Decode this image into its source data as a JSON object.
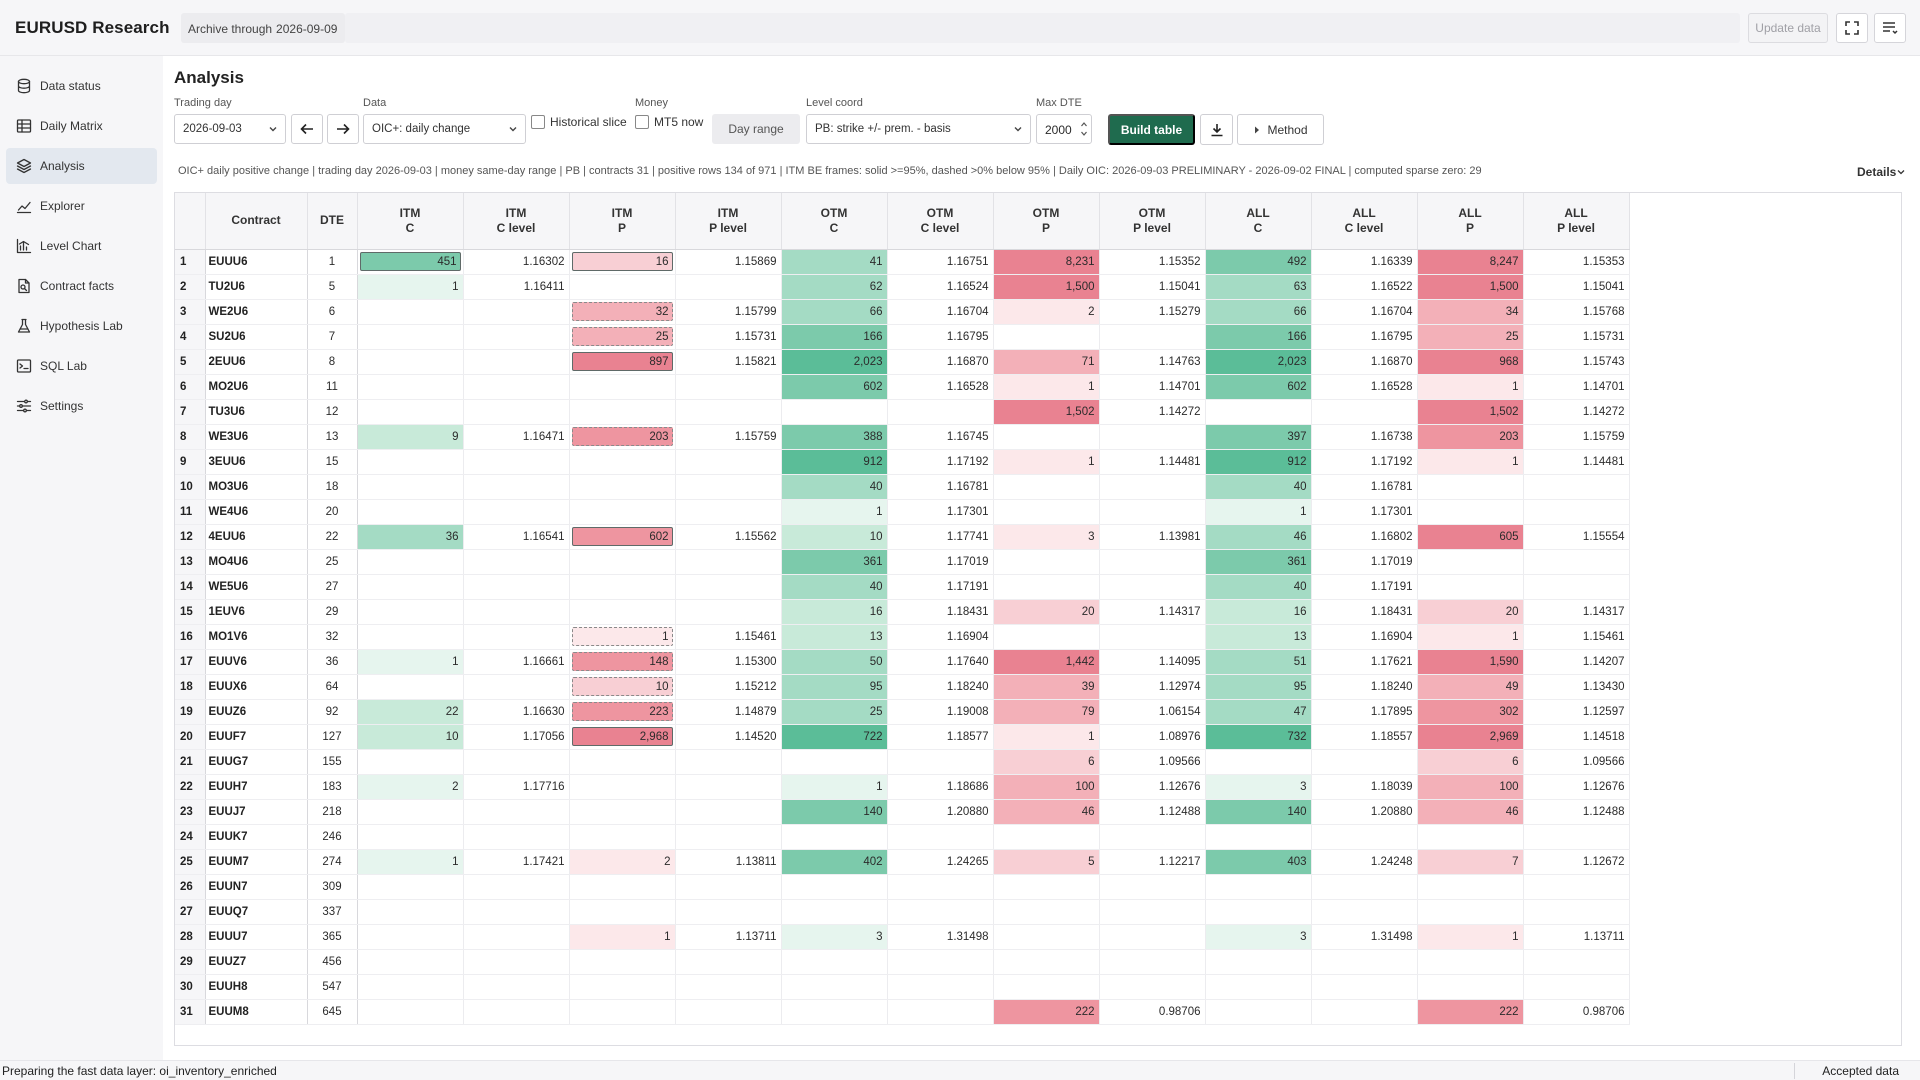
{
  "header": {
    "app_title": "EURUSD Research",
    "archive_label": "Archive through",
    "archive_date": "2026-09-09",
    "update_button": "Update data"
  },
  "sidebar": {
    "items": [
      {
        "label": "Data status",
        "icon": "database-icon"
      },
      {
        "label": "Daily Matrix",
        "icon": "table-icon"
      },
      {
        "label": "Analysis",
        "icon": "layers-icon",
        "active": true
      },
      {
        "label": "Explorer",
        "icon": "trend-line-icon"
      },
      {
        "label": "Level Chart",
        "icon": "bar-chart-icon"
      },
      {
        "label": "Contract facts",
        "icon": "document-icon"
      },
      {
        "label": "Hypothesis Lab",
        "icon": "flask-icon"
      },
      {
        "label": "SQL Lab",
        "icon": "terminal-icon"
      },
      {
        "label": "Settings",
        "icon": "sliders-icon"
      }
    ]
  },
  "analysis": {
    "title": "Analysis",
    "trading_day_label": "Trading day",
    "trading_day_value": "2026-09-03",
    "data_label": "Data",
    "data_value": "OIC+: daily change",
    "historical_slice_label": "Historical slice",
    "money_label": "Money",
    "mt5_now_label": "MT5 now",
    "day_range_label": "Day range",
    "level_coord_label": "Level coord",
    "level_coord_value": "PB: strike +/- prem. - basis",
    "max_dte_label": "Max DTE",
    "max_dte_value": "2000",
    "build_table_label": "Build table",
    "method_label": "Method",
    "summary": "OIC+ daily positive change | trading day 2026-09-03 | money same-day range | PB | contracts 31 | positive rows 134 of 971 | ITM BE frames: solid >=95%, dashed >0% below 95% | Daily OIC: 2026-09-03 PRELIMINARY - 2026-09-02 FINAL | computed sparse zero: 29",
    "details_label": "Details"
  },
  "colors": {
    "green_scale": [
      "#e6f5ee",
      "#c8ead9",
      "#a4dbc4",
      "#7ccaab",
      "#5bbd98"
    ],
    "red_scale": [
      "#fce8ea",
      "#f8cfd4",
      "#f3b0b8",
      "#ee95a0",
      "#e98291"
    ],
    "build_button": "#1f6b4e"
  },
  "table": {
    "columns": [
      {
        "top": "",
        "bottom": ""
      },
      {
        "top": "Contract",
        "bottom": ""
      },
      {
        "top": "DTE",
        "bottom": ""
      },
      {
        "top": "ITM",
        "bottom": "C"
      },
      {
        "top": "ITM",
        "bottom": "C level"
      },
      {
        "top": "ITM",
        "bottom": "P"
      },
      {
        "top": "ITM",
        "bottom": "P level"
      },
      {
        "top": "OTM",
        "bottom": "C"
      },
      {
        "top": "OTM",
        "bottom": "C level"
      },
      {
        "top": "OTM",
        "bottom": "P"
      },
      {
        "top": "OTM",
        "bottom": "P level"
      },
      {
        "top": "ALL",
        "bottom": "C"
      },
      {
        "top": "ALL",
        "bottom": "C level"
      },
      {
        "top": "ALL",
        "bottom": "P"
      },
      {
        "top": "ALL",
        "bottom": "P level"
      }
    ],
    "rows": [
      [
        "1",
        "EUUU6",
        "1",
        "451",
        "1.16302",
        "16",
        "1.15869",
        "41",
        "1.16751",
        "8,231",
        "1.15352",
        "492",
        "1.16339",
        "8,247",
        "1.15353"
      ],
      [
        "2",
        "TU2U6",
        "5",
        "1",
        "1.16411",
        "",
        "",
        "62",
        "1.16524",
        "1,500",
        "1.15041",
        "63",
        "1.16522",
        "1,500",
        "1.15041"
      ],
      [
        "3",
        "WE2U6",
        "6",
        "",
        "",
        "32",
        "1.15799",
        "66",
        "1.16704",
        "2",
        "1.15279",
        "66",
        "1.16704",
        "34",
        "1.15768"
      ],
      [
        "4",
        "SU2U6",
        "7",
        "",
        "",
        "25",
        "1.15731",
        "166",
        "1.16795",
        "",
        "",
        "166",
        "1.16795",
        "25",
        "1.15731"
      ],
      [
        "5",
        "2EUU6",
        "8",
        "",
        "",
        "897",
        "1.15821",
        "2,023",
        "1.16870",
        "71",
        "1.14763",
        "2,023",
        "1.16870",
        "968",
        "1.15743"
      ],
      [
        "6",
        "MO2U6",
        "11",
        "",
        "",
        "",
        "",
        "602",
        "1.16528",
        "1",
        "1.14701",
        "602",
        "1.16528",
        "1",
        "1.14701"
      ],
      [
        "7",
        "TU3U6",
        "12",
        "",
        "",
        "",
        "",
        "",
        "",
        "1,502",
        "1.14272",
        "",
        "",
        "1,502",
        "1.14272"
      ],
      [
        "8",
        "WE3U6",
        "13",
        "9",
        "1.16471",
        "203",
        "1.15759",
        "388",
        "1.16745",
        "",
        "",
        "397",
        "1.16738",
        "203",
        "1.15759"
      ],
      [
        "9",
        "3EUU6",
        "15",
        "",
        "",
        "",
        "",
        "912",
        "1.17192",
        "1",
        "1.14481",
        "912",
        "1.17192",
        "1",
        "1.14481"
      ],
      [
        "10",
        "MO3U6",
        "18",
        "",
        "",
        "",
        "",
        "40",
        "1.16781",
        "",
        "",
        "40",
        "1.16781",
        "",
        ""
      ],
      [
        "11",
        "WE4U6",
        "20",
        "",
        "",
        "",
        "",
        "1",
        "1.17301",
        "",
        "",
        "1",
        "1.17301",
        "",
        ""
      ],
      [
        "12",
        "4EUU6",
        "22",
        "36",
        "1.16541",
        "602",
        "1.15562",
        "10",
        "1.17741",
        "3",
        "1.13981",
        "46",
        "1.16802",
        "605",
        "1.15554"
      ],
      [
        "13",
        "MO4U6",
        "25",
        "",
        "",
        "",
        "",
        "361",
        "1.17019",
        "",
        "",
        "361",
        "1.17019",
        "",
        ""
      ],
      [
        "14",
        "WE5U6",
        "27",
        "",
        "",
        "",
        "",
        "40",
        "1.17191",
        "",
        "",
        "40",
        "1.17191",
        "",
        ""
      ],
      [
        "15",
        "1EUV6",
        "29",
        "",
        "",
        "",
        "",
        "16",
        "1.18431",
        "20",
        "1.14317",
        "16",
        "1.18431",
        "20",
        "1.14317"
      ],
      [
        "16",
        "MO1V6",
        "32",
        "",
        "",
        "1",
        "1.15461",
        "13",
        "1.16904",
        "",
        "",
        "13",
        "1.16904",
        "1",
        "1.15461"
      ],
      [
        "17",
        "EUUV6",
        "36",
        "1",
        "1.16661",
        "148",
        "1.15300",
        "50",
        "1.17640",
        "1,442",
        "1.14095",
        "51",
        "1.17621",
        "1,590",
        "1.14207"
      ],
      [
        "18",
        "EUUX6",
        "64",
        "",
        "",
        "10",
        "1.15212",
        "95",
        "1.18240",
        "39",
        "1.12974",
        "95",
        "1.18240",
        "49",
        "1.13430"
      ],
      [
        "19",
        "EUUZ6",
        "92",
        "22",
        "1.16630",
        "223",
        "1.14879",
        "25",
        "1.19008",
        "79",
        "1.06154",
        "47",
        "1.17895",
        "302",
        "1.12597"
      ],
      [
        "20",
        "EUUF7",
        "127",
        "10",
        "1.17056",
        "2,968",
        "1.14520",
        "722",
        "1.18577",
        "1",
        "1.08976",
        "732",
        "1.18557",
        "2,969",
        "1.14518"
      ],
      [
        "21",
        "EUUG7",
        "155",
        "",
        "",
        "",
        "",
        "",
        "",
        "6",
        "1.09566",
        "",
        "",
        "6",
        "1.09566"
      ],
      [
        "22",
        "EUUH7",
        "183",
        "2",
        "1.17716",
        "",
        "",
        "1",
        "1.18686",
        "100",
        "1.12676",
        "3",
        "1.18039",
        "100",
        "1.12676"
      ],
      [
        "23",
        "EUUJ7",
        "218",
        "",
        "",
        "",
        "",
        "140",
        "1.20880",
        "46",
        "1.12488",
        "140",
        "1.20880",
        "46",
        "1.12488"
      ],
      [
        "24",
        "EUUK7",
        "246",
        "",
        "",
        "",
        "",
        "",
        "",
        "",
        "",
        "",
        "",
        "",
        ""
      ],
      [
        "25",
        "EUUM7",
        "274",
        "1",
        "1.17421",
        "2",
        "1.13811",
        "402",
        "1.24265",
        "5",
        "1.12217",
        "403",
        "1.24248",
        "7",
        "1.12672"
      ],
      [
        "26",
        "EUUN7",
        "309",
        "",
        "",
        "",
        "",
        "",
        "",
        "",
        "",
        "",
        "",
        "",
        ""
      ],
      [
        "27",
        "EUUQ7",
        "337",
        "",
        "",
        "",
        "",
        "",
        "",
        "",
        "",
        "",
        "",
        "",
        ""
      ],
      [
        "28",
        "EUUU7",
        "365",
        "",
        "",
        "1",
        "1.13711",
        "3",
        "1.31498",
        "",
        "",
        "3",
        "1.31498",
        "1",
        "1.13711"
      ],
      [
        "29",
        "EUUZ7",
        "456",
        "",
        "",
        "",
        "",
        "",
        "",
        "",
        "",
        "",
        "",
        "",
        ""
      ],
      [
        "30",
        "EUUH8",
        "547",
        "",
        "",
        "",
        "",
        "",
        "",
        "",
        "",
        "",
        "",
        "",
        ""
      ],
      [
        "31",
        "EUUM8",
        "645",
        "",
        "",
        "",
        "",
        "",
        "",
        "222",
        "0.98706",
        "",
        "",
        "222",
        "0.98706"
      ]
    ],
    "frames": {
      "solid": [
        [
          0,
          3
        ],
        [
          0,
          5
        ],
        [
          4,
          5
        ],
        [
          11,
          5
        ],
        [
          19,
          5
        ]
      ],
      "dashed": [
        [
          2,
          5
        ],
        [
          3,
          5
        ],
        [
          7,
          5
        ],
        [
          15,
          5
        ],
        [
          16,
          5
        ],
        [
          17,
          5
        ],
        [
          18,
          5
        ]
      ]
    }
  },
  "status": {
    "left": "Preparing the fast data layer: oi_inventory_enriched",
    "right": "Accepted data"
  }
}
